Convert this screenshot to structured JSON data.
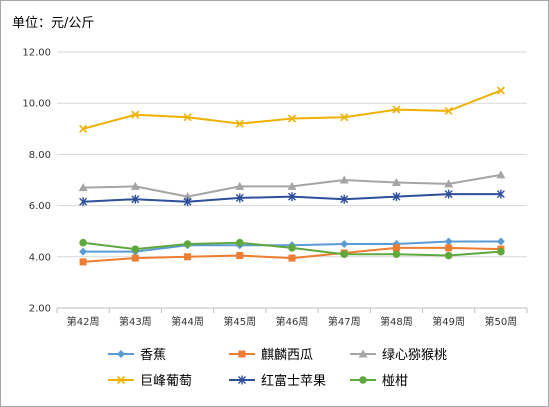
{
  "unit_label": "单位：元/公斤",
  "chart_data": {
    "type": "line",
    "categories": [
      "第42周",
      "第43周",
      "第44周",
      "第45周",
      "第46周",
      "第47周",
      "第48周",
      "第49周",
      "第50周"
    ],
    "ylim": [
      2,
      12
    ],
    "yticks": [
      "2.00",
      "4.00",
      "6.00",
      "8.00",
      "10.00",
      "12.00"
    ],
    "grid": true,
    "legend_position": "bottom",
    "series": [
      {
        "name": "香蕉",
        "color": "#5b9bd5",
        "marker": "diamond",
        "values": [
          4.2,
          4.2,
          4.45,
          4.45,
          4.45,
          4.5,
          4.5,
          4.6,
          4.6
        ]
      },
      {
        "name": "麒麟西瓜",
        "color": "#ed7d31",
        "marker": "square",
        "values": [
          3.8,
          3.95,
          4.0,
          4.05,
          3.95,
          4.15,
          4.35,
          4.35,
          4.3
        ]
      },
      {
        "name": "绿心猕猴桃",
        "color": "#a5a5a5",
        "marker": "triangle",
        "values": [
          6.7,
          6.75,
          6.35,
          6.75,
          6.75,
          7.0,
          6.9,
          6.85,
          7.2
        ]
      },
      {
        "name": "巨峰葡萄",
        "color": "#f0b000",
        "marker": "x",
        "values": [
          9.0,
          9.55,
          9.45,
          9.2,
          9.4,
          9.45,
          9.75,
          9.7,
          10.5
        ]
      },
      {
        "name": "红富士苹果",
        "color": "#2e4f9b",
        "marker": "star",
        "values": [
          6.15,
          6.25,
          6.15,
          6.3,
          6.35,
          6.25,
          6.35,
          6.45,
          6.45
        ]
      },
      {
        "name": "椪柑",
        "color": "#5fa83f",
        "marker": "circle",
        "values": [
          4.55,
          4.3,
          4.5,
          4.55,
          4.35,
          4.1,
          4.1,
          4.05,
          4.2
        ]
      }
    ]
  }
}
